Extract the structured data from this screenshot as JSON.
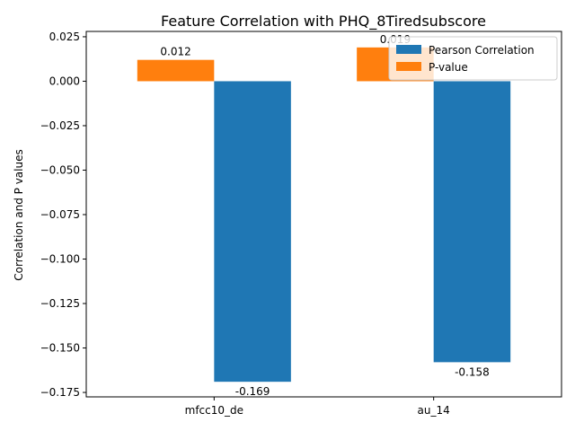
{
  "chart_data": {
    "type": "bar",
    "title": "Feature Correlation with PHQ_8Tiredsubscore",
    "xlabel": "",
    "ylabel": "Correlation and P values",
    "categories": [
      "mfcc10_de",
      "au_14"
    ],
    "series": [
      {
        "name": "Pearson Correlation",
        "values": [
          -0.169,
          -0.158
        ],
        "color": "#1f77b4"
      },
      {
        "name": "P-value",
        "values": [
          0.012,
          0.019
        ],
        "color": "#ff7f0e"
      }
    ],
    "data_labels": [
      [
        "-0.169",
        "-0.158"
      ],
      [
        "0.012",
        "0.019"
      ]
    ],
    "ylim": [
      -0.1775,
      0.028
    ],
    "yticks": [
      0.025,
      0.0,
      -0.025,
      -0.05,
      -0.075,
      -0.1,
      -0.125,
      -0.15,
      -0.175
    ],
    "ytick_labels": [
      "0.025",
      "0.000",
      "−0.025",
      "−0.050",
      "−0.075",
      "−0.100",
      "−0.125",
      "−0.150",
      "−0.175"
    ],
    "grid": false,
    "legend_position": "upper right"
  }
}
